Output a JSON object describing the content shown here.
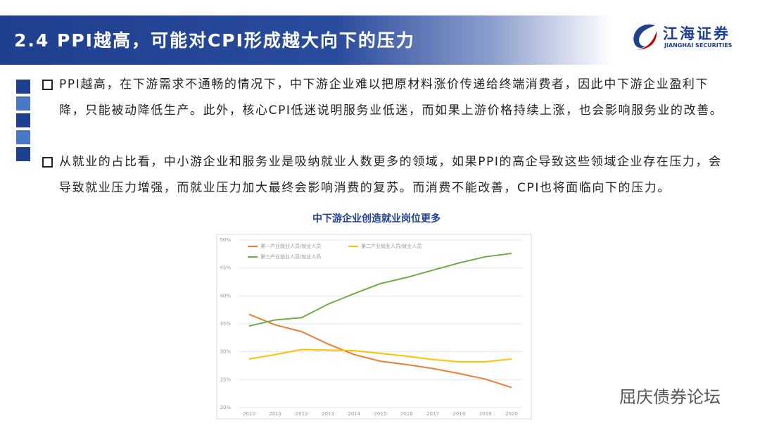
{
  "header": {
    "title": "2.4 PPI越高，可能对CPI形成越大向下的压力",
    "logo_cn": "江海证券",
    "logo_en": "JIANGHAI SECURITIES"
  },
  "bullets": [
    "PPI越高，在下游需求不通畅的情况下，中下游企业难以把原材料涨价传递给终端消费者，因此中下游企业盈利下降，只能被动降低生产。此外，核心CPI低迷说明服务业低迷，而如果上游价格持续上涨，也会影响服务业的改善。",
    "从就业的占比看，中小游企业和服务业是吸纳就业人数更多的领域，如果PPI的高企导致这些领域企业存在压力，会导致就业压力增强，而就业压力加大最终会影响消费的复苏。而消费不能改善，CPI也将面临向下的压力。"
  ],
  "watermark": "屈庆债券论坛",
  "chart_data": {
    "type": "line",
    "title": "中下游企业创造就业岗位更多",
    "categories": [
      "2010",
      "2011",
      "2012",
      "2013",
      "2014",
      "2015",
      "2016",
      "2017",
      "2018",
      "2019",
      "2020"
    ],
    "series": [
      {
        "name": "第一产业就业人员/就业人员",
        "color": "#ed7d31",
        "values": [
          36.7,
          34.8,
          33.6,
          31.4,
          29.5,
          28.3,
          27.7,
          27.0,
          26.1,
          25.1,
          23.6
        ]
      },
      {
        "name": "第二产业就业人员/就业人员",
        "color": "#ffc000",
        "values": [
          28.7,
          29.5,
          30.4,
          30.3,
          30.2,
          29.7,
          29.2,
          28.6,
          28.2,
          28.2,
          28.7
        ]
      },
      {
        "name": "第三产业就业人员/就业人员",
        "color": "#70ad47",
        "values": [
          34.6,
          35.7,
          36.1,
          38.5,
          40.4,
          42.2,
          43.3,
          44.6,
          45.9,
          47.0,
          47.6
        ]
      }
    ],
    "ylim": [
      20,
      50
    ],
    "yticks": [
      {
        "value": 20,
        "label": "20%"
      },
      {
        "value": 25,
        "label": "25%"
      },
      {
        "value": 30,
        "label": "30%"
      },
      {
        "value": 35,
        "label": "35%"
      },
      {
        "value": 40,
        "label": "40%"
      },
      {
        "value": 45,
        "label": "45%"
      },
      {
        "value": 50,
        "label": "50%"
      }
    ],
    "grid": true
  }
}
